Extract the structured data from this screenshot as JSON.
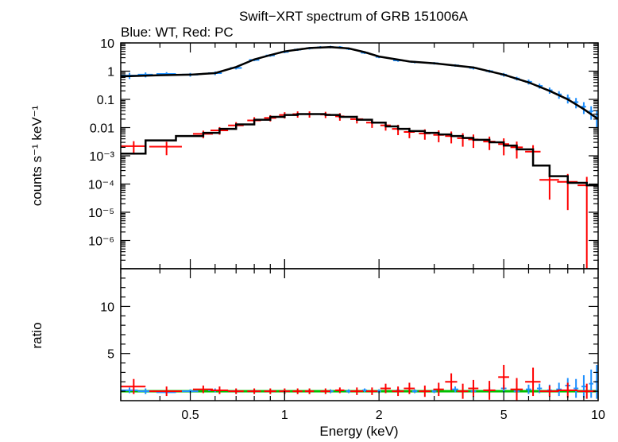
{
  "chart_data": {
    "type": "scatter",
    "title": "Swift−XRT spectrum of GRB 151006A",
    "subtitle": "Blue: WT, Red: PC",
    "xlabel": "Energy (keV)",
    "x_scale": "log",
    "xlim": [
      0.3,
      10
    ],
    "x_ticks": [
      {
        "value": 0.5,
        "label": "0.5"
      },
      {
        "value": 1,
        "label": "1"
      },
      {
        "value": 2,
        "label": "2"
      },
      {
        "value": 5,
        "label": "5"
      },
      {
        "value": 10,
        "label": "10"
      }
    ],
    "panels": [
      {
        "name": "spectrum",
        "ylabel": "counts s⁻¹ keV⁻¹",
        "y_scale": "log",
        "ylim": [
          1e-07,
          10
        ],
        "y_ticks": [
          {
            "value": 10,
            "label": "10"
          },
          {
            "value": 1,
            "label": "1"
          },
          {
            "value": 0.1,
            "label": "0.1"
          },
          {
            "value": 0.01,
            "label": "0.01"
          },
          {
            "value": 0.001,
            "label": "10⁻³"
          },
          {
            "value": 0.0001,
            "label": "10⁻⁴"
          },
          {
            "value": 1e-05,
            "label": "10⁻⁵"
          },
          {
            "value": 1e-06,
            "label": "10⁻⁶"
          }
        ],
        "series": [
          {
            "color": "#1e90ff",
            "x": [
              0.32,
              0.36,
              0.42,
              0.5,
              0.6,
              0.7,
              0.8,
              0.9,
              1.0,
              1.1,
              1.2,
              1.3,
              1.4,
              1.5,
              1.6,
              1.8,
              2.0,
              2.3,
              2.6,
              3.0,
              3.5,
              4.0,
              4.5,
              5.0,
              5.5,
              6.0,
              6.5,
              7.0,
              7.5,
              8.0,
              8.5,
              9.0,
              9.5,
              9.9
            ],
            "y": [
              0.7,
              0.75,
              0.8,
              0.75,
              0.85,
              1.3,
              2.5,
              3.6,
              4.8,
              5.8,
              6.5,
              7.0,
              7.2,
              7.0,
              6.2,
              4.5,
              3.2,
              2.4,
              2.1,
              1.9,
              1.6,
              1.3,
              1.0,
              0.75,
              0.55,
              0.42,
              0.3,
              0.21,
              0.15,
              0.11,
              0.08,
              0.055,
              0.038,
              0.025
            ],
            "xerr": [
              0.02,
              0.02,
              0.03,
              0.03,
              0.03,
              0.03,
              0.03,
              0.03,
              0.03,
              0.03,
              0.03,
              0.03,
              0.03,
              0.03,
              0.03,
              0.05,
              0.05,
              0.08,
              0.08,
              0.1,
              0.1,
              0.12,
              0.12,
              0.12,
              0.12,
              0.15,
              0.15,
              0.15,
              0.15,
              0.15,
              0.15,
              0.15,
              0.15,
              0.1
            ],
            "yrel": [
              0.25,
              0.2,
              0.15,
              0.15,
              0.15,
              0.12,
              0.1,
              0.1,
              0.1,
              0.1,
              0.1,
              0.1,
              0.1,
              0.1,
              0.1,
              0.1,
              0.1,
              0.1,
              0.1,
              0.1,
              0.1,
              0.12,
              0.12,
              0.15,
              0.15,
              0.2,
              0.2,
              0.25,
              0.3,
              0.35,
              0.4,
              0.45,
              0.5,
              0.6
            ]
          },
          {
            "color": "#ff0000",
            "x": [
              0.33,
              0.42,
              0.55,
              0.62,
              0.7,
              0.8,
              0.9,
              1.0,
              1.1,
              1.2,
              1.35,
              1.5,
              1.7,
              1.9,
              2.1,
              2.3,
              2.5,
              2.8,
              3.1,
              3.4,
              3.7,
              4.0,
              4.5,
              5.0,
              5.5,
              6.2,
              7.0,
              8.0,
              9.2
            ],
            "y": [
              0.0022,
              0.0021,
              0.006,
              0.008,
              0.012,
              0.018,
              0.022,
              0.028,
              0.03,
              0.03,
              0.029,
              0.025,
              0.02,
              0.015,
              0.012,
              0.009,
              0.007,
              0.0062,
              0.0055,
              0.005,
              0.0042,
              0.0038,
              0.0032,
              0.0026,
              0.002,
              0.0014,
              0.00014,
              0.00012,
              9e-05
            ],
            "xerr": [
              0.03,
              0.05,
              0.04,
              0.04,
              0.04,
              0.04,
              0.04,
              0.04,
              0.04,
              0.04,
              0.05,
              0.05,
              0.08,
              0.08,
              0.08,
              0.1,
              0.1,
              0.12,
              0.12,
              0.15,
              0.15,
              0.15,
              0.2,
              0.2,
              0.25,
              0.35,
              0.5,
              0.6,
              0.6
            ],
            "yrel": [
              0.5,
              0.5,
              0.3,
              0.3,
              0.3,
              0.3,
              0.25,
              0.25,
              0.25,
              0.25,
              0.25,
              0.3,
              0.3,
              0.35,
              0.35,
              0.4,
              0.4,
              0.4,
              0.45,
              0.45,
              0.5,
              0.5,
              0.5,
              0.6,
              0.6,
              0.7,
              0.8,
              0.9,
              1.0
            ]
          }
        ],
        "model_lines": [
          {
            "color": "#000000",
            "x": [
              0.3,
              0.4,
              0.5,
              0.6,
              0.7,
              0.8,
              0.9,
              1.0,
              1.2,
              1.4,
              1.6,
              1.8,
              2.0,
              2.5,
              3.0,
              4.0,
              5.0,
              6.0,
              7.0,
              8.0,
              9.0,
              10.0
            ],
            "y": [
              0.65,
              0.72,
              0.75,
              0.85,
              1.4,
              2.6,
              3.7,
              5.0,
              6.6,
              7.1,
              6.4,
              4.7,
              3.3,
              2.2,
              1.9,
              1.35,
              0.75,
              0.4,
              0.2,
              0.1,
              0.045,
              0.02
            ]
          },
          {
            "color": "#000000",
            "step": true,
            "x": [
              0.3,
              0.36,
              0.45,
              0.55,
              0.62,
              0.7,
              0.8,
              0.9,
              1.0,
              1.1,
              1.2,
              1.35,
              1.5,
              1.7,
              1.9,
              2.1,
              2.3,
              2.5,
              2.8,
              3.1,
              3.4,
              3.7,
              4.0,
              4.5,
              5.0,
              5.5,
              6.2,
              7.0,
              8.0,
              9.2,
              10.0
            ],
            "y": [
              0.0012,
              0.0035,
              0.005,
              0.0065,
              0.009,
              0.013,
              0.019,
              0.024,
              0.028,
              0.03,
              0.03,
              0.028,
              0.024,
              0.019,
              0.015,
              0.011,
              0.009,
              0.0075,
              0.0065,
              0.0057,
              0.005,
              0.0043,
              0.0037,
              0.003,
              0.0023,
              0.0017,
              0.00045,
              0.00019,
              0.00011,
              9e-05,
              9e-05
            ]
          }
        ]
      },
      {
        "name": "ratio",
        "ylabel": "ratio",
        "y_scale": "linear",
        "ylim": [
          0,
          14
        ],
        "y_ticks": [
          {
            "value": 5,
            "label": "5"
          },
          {
            "value": 10,
            "label": "10"
          }
        ],
        "reference_line": {
          "y": 1,
          "color": "#00c000"
        },
        "series": [
          {
            "color": "#1e90ff",
            "x": [
              0.32,
              0.36,
              0.42,
              0.5,
              0.6,
              0.7,
              0.8,
              0.9,
              1.0,
              1.2,
              1.4,
              1.6,
              1.8,
              2.0,
              2.3,
              2.6,
              3.0,
              3.5,
              4.0,
              4.5,
              5.0,
              5.5,
              6.0,
              6.5,
              7.0,
              7.5,
              8.0,
              8.5,
              9.0,
              9.5,
              9.9
            ],
            "y": [
              1.1,
              1.0,
              0.9,
              1.0,
              1.1,
              1.0,
              1.0,
              1.0,
              1.0,
              1.0,
              1.0,
              1.0,
              1.1,
              1.0,
              1.1,
              1.0,
              1.0,
              1.2,
              1.0,
              1.1,
              1.3,
              1.0,
              1.2,
              1.3,
              1.1,
              1.2,
              1.6,
              1.3,
              1.5,
              1.8,
              2.0
            ],
            "yerr": [
              0.3,
              0.3,
              0.2,
              0.2,
              0.2,
              0.2,
              0.2,
              0.2,
              0.2,
              0.2,
              0.2,
              0.2,
              0.2,
              0.2,
              0.2,
              0.2,
              0.2,
              0.3,
              0.3,
              0.3,
              0.4,
              0.4,
              0.5,
              0.5,
              0.6,
              0.7,
              0.8,
              1.0,
              1.2,
              1.5,
              1.8
            ]
          },
          {
            "color": "#ff0000",
            "x": [
              0.33,
              0.42,
              0.55,
              0.62,
              0.7,
              0.8,
              0.9,
              1.0,
              1.1,
              1.2,
              1.35,
              1.5,
              1.7,
              1.9,
              2.1,
              2.3,
              2.5,
              2.8,
              3.1,
              3.4,
              3.7,
              4.0,
              4.5,
              5.0,
              5.5,
              6.2,
              7.0,
              8.0,
              9.2
            ],
            "y": [
              1.5,
              1.0,
              1.2,
              1.1,
              1.0,
              1.0,
              1.0,
              1.0,
              1.0,
              1.0,
              1.0,
              1.1,
              1.0,
              1.0,
              1.3,
              1.0,
              1.3,
              1.0,
              1.2,
              2.0,
              1.0,
              1.3,
              1.1,
              2.5,
              1.2,
              2.0,
              1.0,
              1.1,
              1.0
            ],
            "yerr": [
              0.8,
              0.5,
              0.4,
              0.4,
              0.3,
              0.3,
              0.3,
              0.3,
              0.3,
              0.3,
              0.3,
              0.3,
              0.4,
              0.4,
              0.5,
              0.5,
              0.6,
              0.6,
              0.7,
              0.9,
              0.8,
              0.9,
              1.0,
              1.3,
              1.2,
              1.5,
              0.6,
              0.8,
              0.8
            ]
          }
        ]
      }
    ]
  }
}
